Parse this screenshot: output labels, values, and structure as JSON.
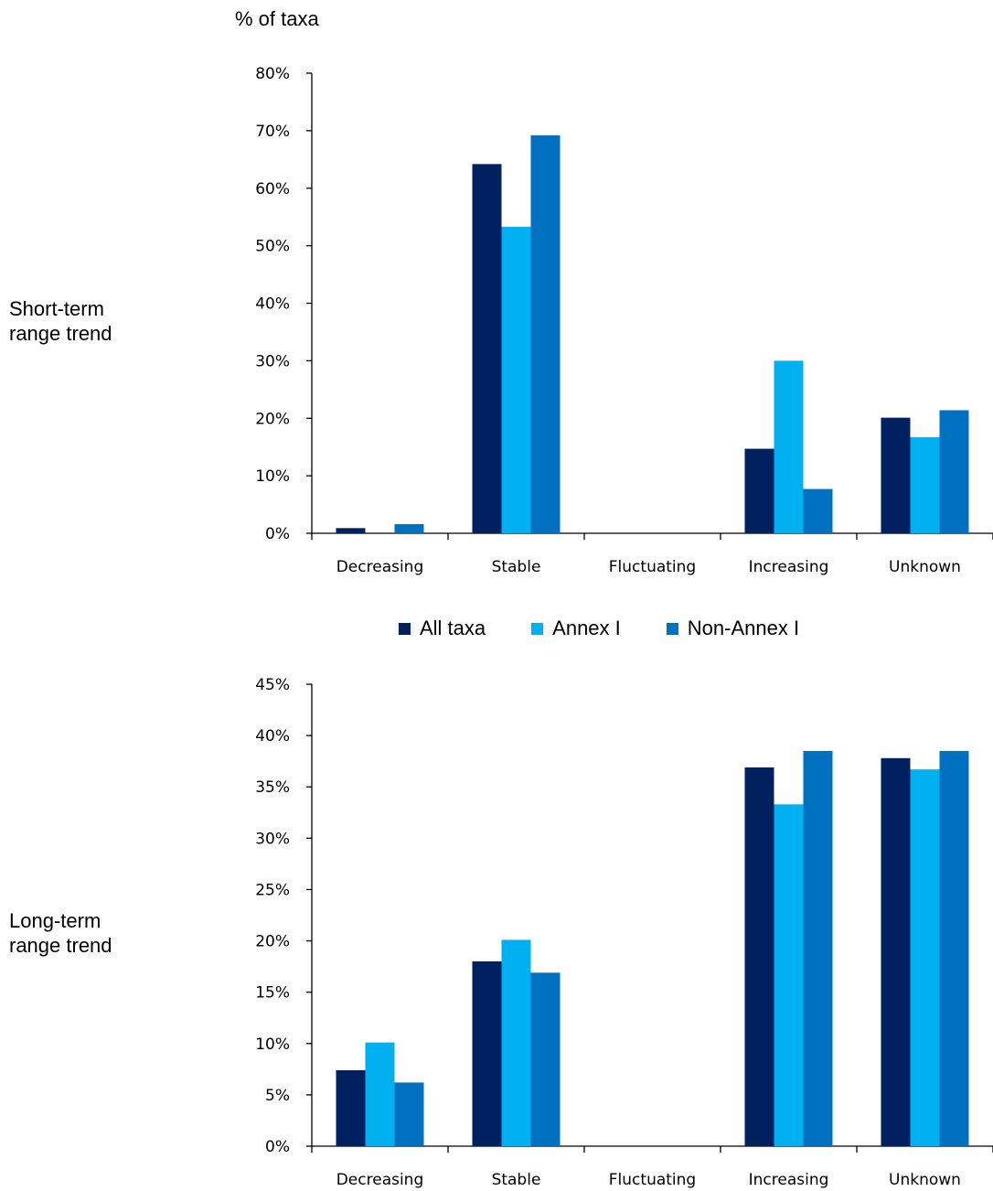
{
  "y_axis_title": "% of taxa",
  "row_labels": {
    "short_term": [
      "Short-term",
      "range trend"
    ],
    "long_term": [
      "Long-term",
      "range trend"
    ]
  },
  "legend": {
    "items": [
      {
        "label": "All taxa",
        "color": "#002060"
      },
      {
        "label": "Annex I",
        "color": "#00b0f0"
      },
      {
        "label": "Non-Annex I",
        "color": "#0070c0"
      }
    ]
  },
  "chart_data": [
    {
      "type": "bar",
      "title": "",
      "row_label": "Short-term range trend",
      "ylabel": "% of taxa",
      "categories": [
        "Decreasing",
        "Stable",
        "Fluctuating",
        "Increasing",
        "Unknown"
      ],
      "ylim": [
        0,
        80
      ],
      "yticks": [
        "0%",
        "10%",
        "20%",
        "30%",
        "40%",
        "50%",
        "60%",
        "70%",
        "80%"
      ],
      "series": [
        {
          "name": "All taxa",
          "values": [
            0.9,
            64.2,
            0,
            14.7,
            20.1
          ]
        },
        {
          "name": "Annex I",
          "values": [
            0,
            53.3,
            0,
            30.0,
            16.7
          ]
        },
        {
          "name": "Non-Annex I",
          "values": [
            1.6,
            69.2,
            0,
            7.7,
            21.4
          ]
        }
      ]
    },
    {
      "type": "bar",
      "title": "",
      "row_label": "Long-term range trend",
      "categories": [
        "Decreasing",
        "Stable",
        "Fluctuating",
        "Increasing",
        "Unknown"
      ],
      "ylim": [
        0,
        45
      ],
      "yticks": [
        "0%",
        "5%",
        "10%",
        "15%",
        "20%",
        "25%",
        "30%",
        "35%",
        "40%",
        "45%"
      ],
      "series": [
        {
          "name": "All taxa",
          "values": [
            7.4,
            18.0,
            0,
            36.9,
            37.8
          ]
        },
        {
          "name": "Annex I",
          "values": [
            10.1,
            20.1,
            0,
            33.3,
            36.7
          ]
        },
        {
          "name": "Non-Annex I",
          "values": [
            6.2,
            16.9,
            0,
            38.5,
            38.5
          ]
        }
      ]
    }
  ]
}
